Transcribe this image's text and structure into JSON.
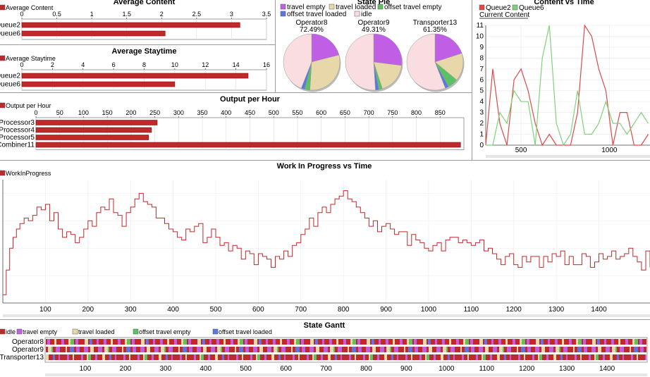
{
  "chart_data": [
    {
      "id": "avg_content",
      "type": "bar",
      "orientation": "horizontal",
      "title": "Average Content",
      "legend": [
        "Average Content"
      ],
      "categories": [
        "Queue2",
        "Queue6"
      ],
      "values": [
        3.12,
        2.05
      ],
      "xlim": [
        0,
        3.5
      ],
      "xticks": [
        "0",
        "0.5",
        "1",
        "1.5",
        "2",
        "2.5",
        "3",
        "3.5"
      ],
      "color": "#c0282a"
    },
    {
      "id": "avg_staytime",
      "type": "bar",
      "orientation": "horizontal",
      "title": "Average Staytime",
      "legend": [
        "Average Staytime"
      ],
      "categories": [
        "Queue2",
        "Queue6"
      ],
      "values": [
        14.8,
        10.0
      ],
      "xlim": [
        0,
        16
      ],
      "xticks": [
        "0",
        "2",
        "4",
        "6",
        "8",
        "10",
        "12",
        "14",
        "16"
      ],
      "color": "#c0282a"
    },
    {
      "id": "output_per_hour",
      "type": "bar",
      "orientation": "horizontal",
      "title": "Output per Hour",
      "legend": [
        "Output per Hour"
      ],
      "categories": [
        "Processor3",
        "Processor4",
        "Processor5",
        "Combiner11"
      ],
      "values": [
        255,
        243,
        237,
        893
      ],
      "xlim": [
        0,
        900
      ],
      "xticks": [
        "0",
        "50",
        "100",
        "150",
        "200",
        "250",
        "300",
        "350",
        "400",
        "450",
        "500",
        "550",
        "600",
        "650",
        "700",
        "750",
        "800",
        "850"
      ],
      "color": "#c0282a"
    },
    {
      "id": "state_pie",
      "type": "pie",
      "title": "State Pie",
      "legend": [
        {
          "name": "travel empty",
          "color": "#c15ee6"
        },
        {
          "name": "travel loaded",
          "color": "#e8d7a8"
        },
        {
          "name": "offset travel empty",
          "color": "#5cc064"
        },
        {
          "name": "offset travel loaded",
          "color": "#5b78e0"
        },
        {
          "name": "idle",
          "color": "#fadde0"
        }
      ],
      "pies": [
        {
          "name": "Operator8",
          "label": "72.49%",
          "slices": [
            0.21,
            0.3,
            0.03,
            0.02,
            0.44
          ]
        },
        {
          "name": "Operator9",
          "label": "49.31%",
          "slices": [
            0.27,
            0.18,
            0.02,
            0.02,
            0.51
          ]
        },
        {
          "name": "Transporter13",
          "label": "61.35%",
          "slices": [
            0.2,
            0.16,
            0.06,
            0.02,
            0.56
          ]
        }
      ]
    },
    {
      "id": "content_vs_time",
      "type": "line",
      "title": "Content vs Time",
      "subtitle": "Current Content",
      "series": [
        {
          "name": "Queue2",
          "color": "#e04848",
          "x": [
            300,
            340,
            380,
            420,
            460,
            500,
            540,
            580,
            620,
            660,
            700,
            740,
            780,
            820,
            860,
            900,
            940,
            980,
            1020,
            1060,
            1100,
            1140,
            1180,
            1220
          ],
          "y": [
            0,
            7,
            2,
            0,
            6,
            7,
            5,
            2,
            0,
            1,
            0,
            0,
            0,
            3,
            11,
            10,
            7,
            5,
            0,
            3,
            3,
            0,
            0,
            1
          ]
        },
        {
          "name": "Queue6",
          "color": "#7fd27a",
          "x": [
            300,
            340,
            380,
            420,
            460,
            500,
            540,
            580,
            620,
            660,
            700,
            740,
            780,
            820,
            860,
            900,
            940,
            980,
            1020,
            1060,
            1100,
            1140,
            1180,
            1220
          ],
          "y": [
            0,
            0,
            3,
            2,
            5,
            4,
            4,
            0,
            8,
            11,
            2,
            0,
            1,
            5,
            1,
            1,
            2,
            4,
            2,
            2,
            1,
            2,
            3,
            2
          ]
        }
      ],
      "xlim": [
        300,
        1230
      ],
      "ylim": [
        0,
        11
      ],
      "xticks": [
        500,
        1000
      ],
      "yticks": [
        "0",
        "1",
        "2",
        "3",
        "4",
        "5",
        "6",
        "7",
        "8",
        "9",
        "10",
        "11"
      ]
    },
    {
      "id": "wip_vs_time",
      "type": "line",
      "title": "Work In Progress vs Time",
      "legend": [
        "WorkInProgress"
      ],
      "series": [
        {
          "name": "WorkInProgress",
          "color": "#c0282a",
          "x": [
            0,
            8,
            16,
            24,
            32,
            40,
            50,
            60,
            70,
            80,
            90,
            100,
            110,
            120,
            130,
            140,
            150,
            160,
            170,
            180,
            190,
            200,
            210,
            220,
            230,
            240,
            250,
            260,
            270,
            280,
            290,
            300,
            310,
            320,
            330,
            340,
            350,
            360,
            370,
            380,
            390,
            400,
            410,
            420,
            430,
            440,
            450,
            460,
            470,
            480,
            490,
            500,
            510,
            520,
            530,
            540,
            550,
            560,
            570,
            580,
            590,
            600,
            610,
            620,
            630,
            640,
            650,
            660,
            670,
            680,
            690,
            700,
            710,
            720,
            730,
            740,
            750,
            760,
            770,
            780,
            790,
            800,
            810,
            820,
            830,
            840,
            850,
            860,
            870,
            880,
            890,
            900,
            910,
            920,
            930,
            940,
            950,
            960,
            970,
            980,
            990,
            1000,
            1010,
            1020,
            1030,
            1040,
            1050,
            1060,
            1070,
            1080,
            1090,
            1100,
            1110,
            1120,
            1130,
            1140,
            1150,
            1160,
            1170,
            1180,
            1190,
            1200,
            1210,
            1220,
            1230,
            1240,
            1250,
            1260,
            1270,
            1280,
            1290,
            1300,
            1310,
            1320,
            1330,
            1340,
            1350,
            1360,
            1370,
            1380,
            1390,
            1400,
            1410,
            1420,
            1430,
            1440,
            1450,
            1460,
            1470,
            1480,
            1490,
            1500,
            1510,
            1520
          ],
          "y": [
            3,
            12,
            20,
            24,
            27,
            29,
            31,
            30,
            32,
            35,
            34,
            36,
            30,
            33,
            27,
            24,
            26,
            25,
            22,
            24,
            27,
            30,
            28,
            33,
            35,
            34,
            38,
            33,
            32,
            28,
            33,
            35,
            38,
            40,
            37,
            36,
            35,
            31,
            31,
            29,
            27,
            26,
            24,
            23,
            27,
            26,
            28,
            29,
            22,
            24,
            27,
            24,
            21,
            22,
            19,
            21,
            20,
            16,
            19,
            18,
            14,
            18,
            17,
            16,
            13,
            17,
            16,
            19,
            17,
            21,
            22,
            25,
            27,
            31,
            28,
            33,
            35,
            33,
            36,
            38,
            39,
            41,
            38,
            37,
            35,
            33,
            31,
            28,
            30,
            26,
            28,
            29,
            27,
            25,
            26,
            26,
            21,
            25,
            23,
            22,
            20,
            19,
            21,
            22,
            19,
            23,
            24,
            24,
            22,
            23,
            22,
            21,
            22,
            23,
            19,
            20,
            18,
            16,
            14,
            17,
            18,
            14,
            13,
            17,
            15,
            17,
            17,
            13,
            17,
            15,
            18,
            17,
            19,
            14,
            17,
            14,
            14,
            18,
            17,
            13,
            15,
            18,
            16,
            17,
            19,
            16,
            17,
            18,
            20,
            17,
            15,
            12,
            19,
            13
          ]
        }
      ],
      "xlim": [
        0,
        1520
      ],
      "ylim": [
        0,
        45
      ],
      "xticks": [
        100,
        200,
        300,
        400,
        500,
        600,
        700,
        800,
        900,
        1000,
        1100,
        1200,
        1300,
        1400
      ]
    },
    {
      "id": "state_gantt",
      "type": "gantt",
      "title": "State Gantt",
      "legend": [
        {
          "name": "idle",
          "color": "#c0282a"
        },
        {
          "name": "travel empty",
          "color": "#c15ee6"
        },
        {
          "name": "travel loaded",
          "color": "#e8d7a8"
        },
        {
          "name": "offset travel empty",
          "color": "#5cc064"
        },
        {
          "name": "offset travel loaded",
          "color": "#5b78e0"
        }
      ],
      "rows": [
        "Operator8",
        "Operator9",
        "Transporter13"
      ],
      "xlim": [
        0,
        1500
      ],
      "xticks": [
        100,
        200,
        300,
        400,
        500,
        600,
        700,
        800,
        900,
        1000,
        1100,
        1200,
        1300,
        1400
      ]
    }
  ]
}
